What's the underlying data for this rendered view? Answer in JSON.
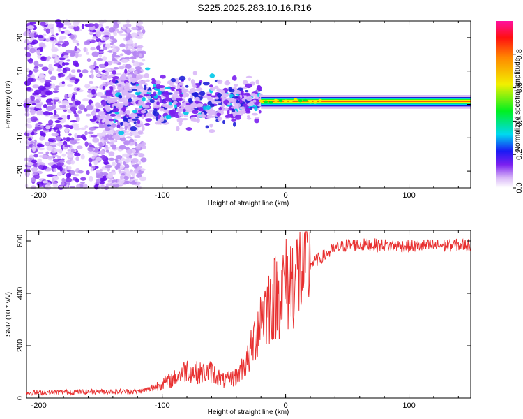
{
  "title": "S225.2025.283.10.16.R16",
  "chart_data": [
    {
      "type": "heatmap",
      "xlabel": "Height of straight line (km)",
      "ylabel": "Frequency (Hz)",
      "xlim": [
        -210,
        150
      ],
      "ylim": [
        -25,
        25
      ],
      "xticks": [
        -200,
        -100,
        0,
        100
      ],
      "yticks": [
        -20,
        -10,
        0,
        10,
        20
      ],
      "colorbar": {
        "label": "Normalized spectral amplitude",
        "range": [
          0,
          1
        ],
        "ticks": [
          "0.0",
          "0.2",
          "0.4",
          "0.6",
          "0.8"
        ]
      },
      "features": {
        "noise_region_km": [
          -210,
          -115
        ],
        "scatter_region_km": [
          -145,
          -20
        ],
        "carrier_onset_km": -20,
        "carrier_frequency_hz": 1,
        "carrier_band_hz": [
          -0.5,
          2
        ]
      }
    },
    {
      "type": "line",
      "xlabel": "Height of straight line (km)",
      "ylabel": "SNR (10 * v/v)",
      "xlim": [
        -210,
        150
      ],
      "ylim": [
        0,
        640
      ],
      "xticks": [
        -200,
        -100,
        0,
        100
      ],
      "yticks": [
        0,
        200,
        400,
        600
      ],
      "color": "#e83030",
      "profile": {
        "x": [
          -210,
          -150,
          -120,
          -110,
          -100,
          -90,
          -80,
          -70,
          -60,
          -50,
          -40,
          -30,
          -25,
          -20,
          -15,
          -10,
          -5,
          0,
          5,
          10,
          20,
          30,
          40,
          50,
          70,
          100,
          150
        ],
        "y": [
          20,
          25,
          25,
          35,
          55,
          75,
          110,
          95,
          100,
          65,
          80,
          150,
          230,
          320,
          350,
          380,
          400,
          430,
          450,
          480,
          510,
          540,
          570,
          585,
          585,
          580,
          585
        ]
      }
    }
  ]
}
